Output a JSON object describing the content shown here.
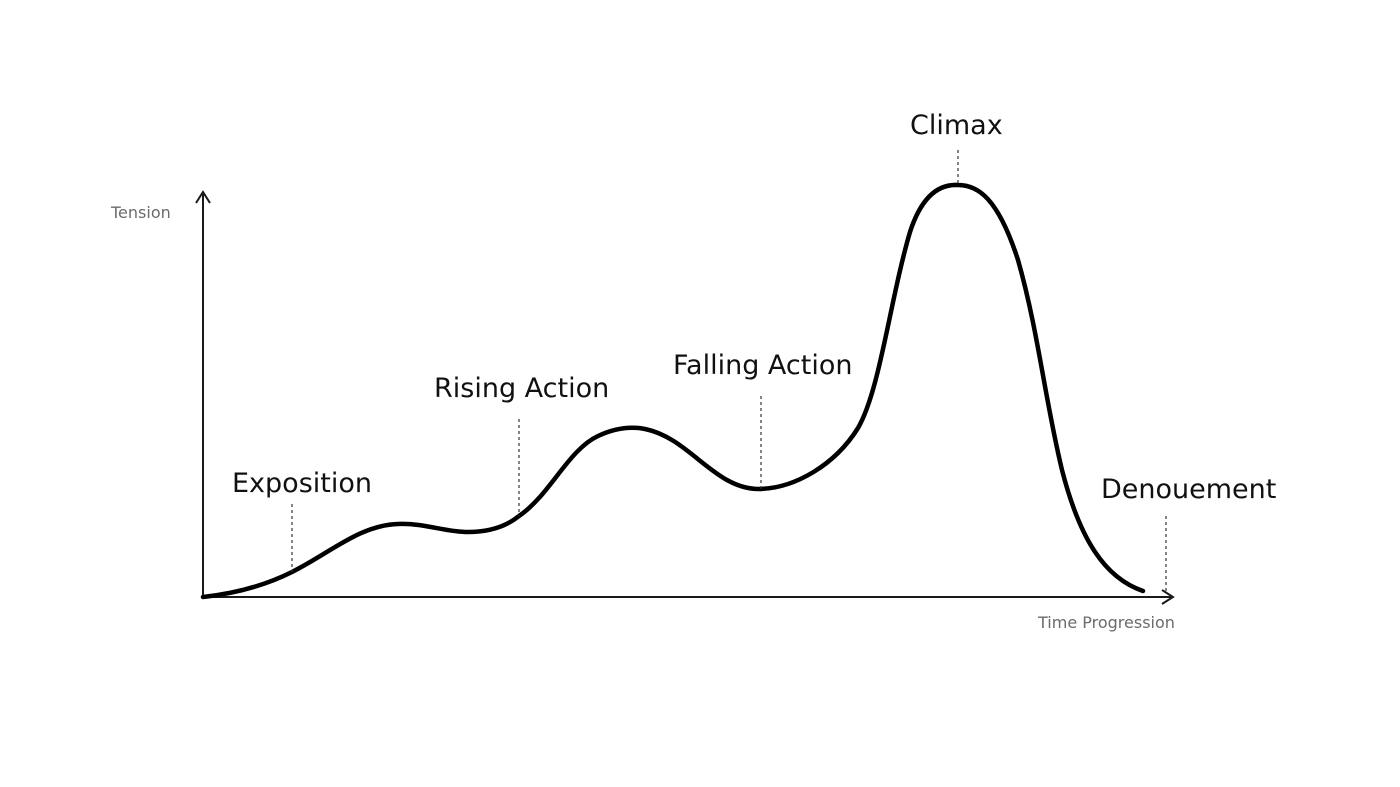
{
  "axes": {
    "y_label": "Tension",
    "x_label": "Time Progression"
  },
  "stages": [
    {
      "id": "exposition",
      "label": "Exposition"
    },
    {
      "id": "rising-action",
      "label": "Rising Action"
    },
    {
      "id": "falling-action",
      "label": "Falling Action"
    },
    {
      "id": "climax",
      "label": "Climax"
    },
    {
      "id": "denouement",
      "label": "Denouement"
    }
  ],
  "colors": {
    "curve": "#000000",
    "axis": "#1a1a1a",
    "axis_label": "#6b6b6b",
    "stage_label": "#111111",
    "background": "#ffffff"
  }
}
